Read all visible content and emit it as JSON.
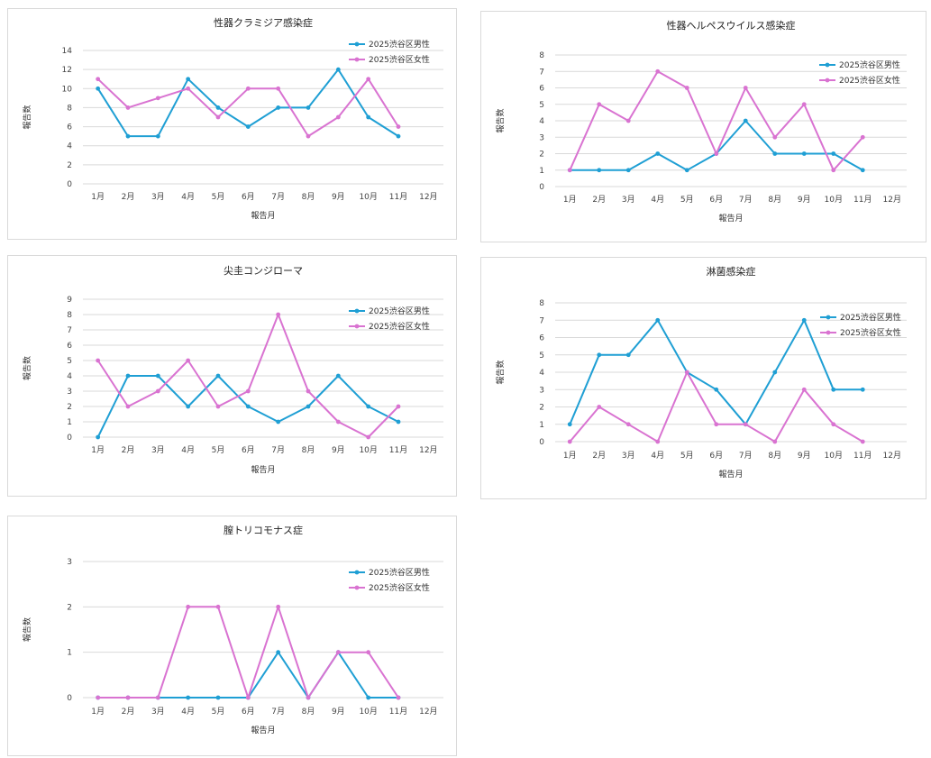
{
  "series_colors": {
    "male": "#1f9fd4",
    "female": "#d973d1"
  },
  "series_names": {
    "male": "2025渋谷区男性",
    "female": "2025渋谷区女性"
  },
  "chart_data": [
    {
      "type": "line",
      "title": "性器クラミジア感染症",
      "xlabel": "報告月",
      "ylabel": "報告数",
      "categories": [
        "1月",
        "2月",
        "3月",
        "4月",
        "5月",
        "6月",
        "7月",
        "8月",
        "9月",
        "10月",
        "11月",
        "12月"
      ],
      "ylim": [
        0,
        14
      ],
      "yticks": [
        0,
        2,
        4,
        6,
        8,
        10,
        12,
        14
      ],
      "series": [
        {
          "key": "male",
          "name": "2025渋谷区男性",
          "values": [
            10,
            5,
            5,
            11,
            8,
            6,
            8,
            8,
            12,
            7,
            5,
            null
          ]
        },
        {
          "key": "female",
          "name": "2025渋谷区女性",
          "values": [
            11,
            8,
            9,
            10,
            7,
            10,
            10,
            5,
            7,
            11,
            6,
            null
          ]
        }
      ]
    },
    {
      "type": "line",
      "title": "性器ヘルペスウイルス感染症",
      "xlabel": "報告月",
      "ylabel": "報告数",
      "categories": [
        "1月",
        "2月",
        "3月",
        "4月",
        "5月",
        "6月",
        "7月",
        "8月",
        "9月",
        "10月",
        "11月",
        "12月"
      ],
      "ylim": [
        0,
        8
      ],
      "yticks": [
        0,
        1,
        2,
        3,
        4,
        5,
        6,
        7,
        8
      ],
      "series": [
        {
          "key": "male",
          "name": "2025渋谷区男性",
          "values": [
            1,
            1,
            1,
            2,
            1,
            2,
            4,
            2,
            2,
            2,
            1,
            null
          ]
        },
        {
          "key": "female",
          "name": "2025渋谷区女性",
          "values": [
            1,
            5,
            4,
            7,
            6,
            2,
            6,
            3,
            5,
            1,
            3,
            null
          ]
        }
      ]
    },
    {
      "type": "line",
      "title": "尖圭コンジローマ",
      "xlabel": "報告月",
      "ylabel": "報告数",
      "categories": [
        "1月",
        "2月",
        "3月",
        "4月",
        "5月",
        "6月",
        "7月",
        "8月",
        "9月",
        "10月",
        "11月",
        "12月"
      ],
      "ylim": [
        0,
        9
      ],
      "yticks": [
        0,
        1,
        2,
        3,
        4,
        5,
        6,
        7,
        8,
        9
      ],
      "series": [
        {
          "key": "male",
          "name": "2025渋谷区男性",
          "values": [
            0,
            4,
            4,
            2,
            4,
            2,
            1,
            2,
            4,
            2,
            1,
            null
          ]
        },
        {
          "key": "female",
          "name": "2025渋谷区女性",
          "values": [
            5,
            2,
            3,
            5,
            2,
            3,
            8,
            3,
            1,
            0,
            2,
            null
          ]
        }
      ]
    },
    {
      "type": "line",
      "title": "淋菌感染症",
      "xlabel": "報告月",
      "ylabel": "報告数",
      "categories": [
        "1月",
        "2月",
        "3月",
        "4月",
        "5月",
        "6月",
        "7月",
        "8月",
        "9月",
        "10月",
        "11月",
        "12月"
      ],
      "ylim": [
        0,
        8
      ],
      "yticks": [
        0,
        1,
        2,
        3,
        4,
        5,
        6,
        7,
        8
      ],
      "series": [
        {
          "key": "male",
          "name": "2025渋谷区男性",
          "values": [
            1,
            5,
            5,
            7,
            4,
            3,
            1,
            4,
            7,
            3,
            3,
            null
          ]
        },
        {
          "key": "female",
          "name": "2025渋谷区女性",
          "values": [
            0,
            2,
            1,
            0,
            4,
            1,
            1,
            0,
            3,
            1,
            0,
            null
          ]
        }
      ]
    },
    {
      "type": "line",
      "title": "膣トリコモナス症",
      "xlabel": "報告月",
      "ylabel": "報告数",
      "categories": [
        "1月",
        "2月",
        "3月",
        "4月",
        "5月",
        "6月",
        "7月",
        "8月",
        "9月",
        "10月",
        "11月",
        "12月"
      ],
      "ylim": [
        0,
        3
      ],
      "yticks": [
        0,
        1,
        2,
        3
      ],
      "series": [
        {
          "key": "male",
          "name": "2025渋谷区男性",
          "values": [
            0,
            0,
            0,
            0,
            0,
            0,
            1,
            0,
            1,
            0,
            0,
            null
          ]
        },
        {
          "key": "female",
          "name": "2025渋谷区女性",
          "values": [
            0,
            0,
            0,
            2,
            2,
            0,
            2,
            0,
            1,
            1,
            0,
            null
          ]
        }
      ]
    }
  ]
}
